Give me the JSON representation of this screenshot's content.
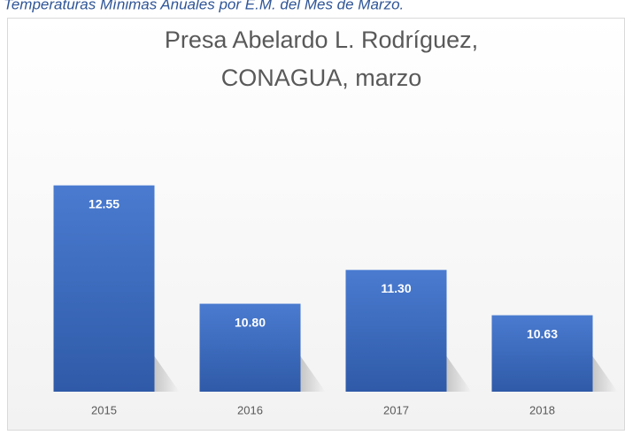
{
  "caption": "Temperaturas Mínimas Anuales por E.M. del Mes de Marzo.",
  "chart_data": {
    "type": "bar",
    "title": [
      "Presa Abelardo L. Rodríguez,",
      "CONAGUA, marzo"
    ],
    "categories": [
      "2015",
      "2016",
      "2017",
      "2018"
    ],
    "values": [
      12.55,
      10.8,
      11.3,
      10.63
    ],
    "value_labels": [
      "12.55",
      "10.80",
      "11.30",
      "10.63"
    ],
    "color": "#4472c4",
    "ylim": [
      9.5,
      13.5
    ]
  }
}
